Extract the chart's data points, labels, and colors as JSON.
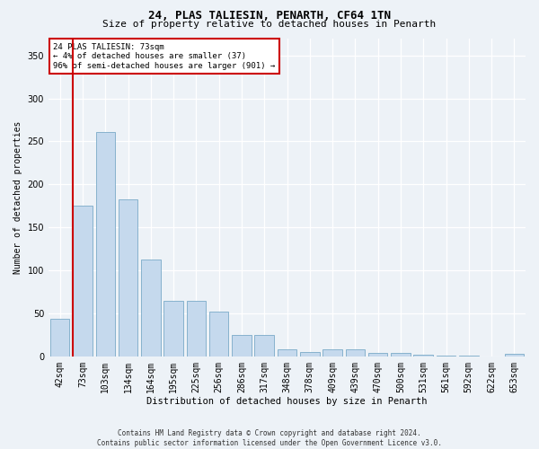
{
  "title1": "24, PLAS TALIESIN, PENARTH, CF64 1TN",
  "title2": "Size of property relative to detached houses in Penarth",
  "xlabel": "Distribution of detached houses by size in Penarth",
  "ylabel": "Number of detached properties",
  "categories": [
    "42sqm",
    "73sqm",
    "103sqm",
    "134sqm",
    "164sqm",
    "195sqm",
    "225sqm",
    "256sqm",
    "286sqm",
    "317sqm",
    "348sqm",
    "378sqm",
    "409sqm",
    "439sqm",
    "470sqm",
    "500sqm",
    "531sqm",
    "561sqm",
    "592sqm",
    "622sqm",
    "653sqm"
  ],
  "values": [
    44,
    175,
    261,
    183,
    113,
    65,
    65,
    52,
    25,
    25,
    8,
    5,
    8,
    8,
    4,
    4,
    2,
    1,
    1,
    0,
    3
  ],
  "highlight_index": 1,
  "highlight_color": "#cc0000",
  "bar_color": "#c5d9ed",
  "bar_edge_color": "#7aaac8",
  "annotation_text": "24 PLAS TALIESIN: 73sqm\n← 4% of detached houses are smaller (37)\n96% of semi-detached houses are larger (901) →",
  "annotation_box_color": "#ffffff",
  "annotation_box_edge": "#cc0000",
  "ylim": [
    0,
    370
  ],
  "yticks": [
    0,
    50,
    100,
    150,
    200,
    250,
    300,
    350
  ],
  "footer": "Contains HM Land Registry data © Crown copyright and database right 2024.\nContains public sector information licensed under the Open Government Licence v3.0.",
  "bg_color": "#edf2f7",
  "plot_bg_color": "#edf2f7",
  "title1_fontsize": 9,
  "title2_fontsize": 8,
  "xlabel_fontsize": 7.5,
  "ylabel_fontsize": 7,
  "xtick_fontsize": 5.5,
  "ytick_fontsize": 7,
  "annot_fontsize": 6.5,
  "footer_fontsize": 5.5
}
